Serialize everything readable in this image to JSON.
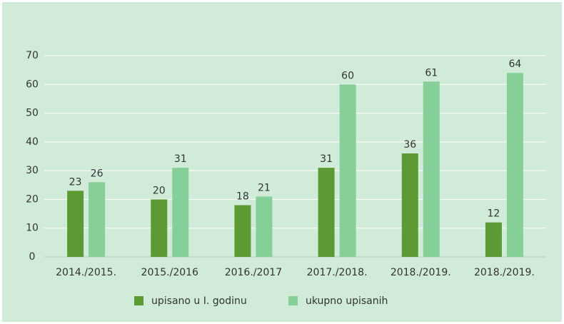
{
  "chart_data": {
    "type": "bar",
    "categories": [
      "2014./2015.",
      "2015./2016",
      "2016./2017",
      "2017./2018.",
      "2018./2019.",
      "2018./2019."
    ],
    "series": [
      {
        "name": "upisano u I. godinu",
        "color": "#5c9b33",
        "values": [
          23,
          20,
          18,
          31,
          36,
          12
        ]
      },
      {
        "name": "ukupno upisanih",
        "color": "#86cf98",
        "values": [
          26,
          31,
          21,
          60,
          61,
          64
        ]
      }
    ],
    "ylim": [
      0,
      70
    ],
    "yticks": [
      0,
      10,
      20,
      30,
      40,
      50,
      60,
      70
    ],
    "grid": true,
    "legend": "bottom"
  }
}
